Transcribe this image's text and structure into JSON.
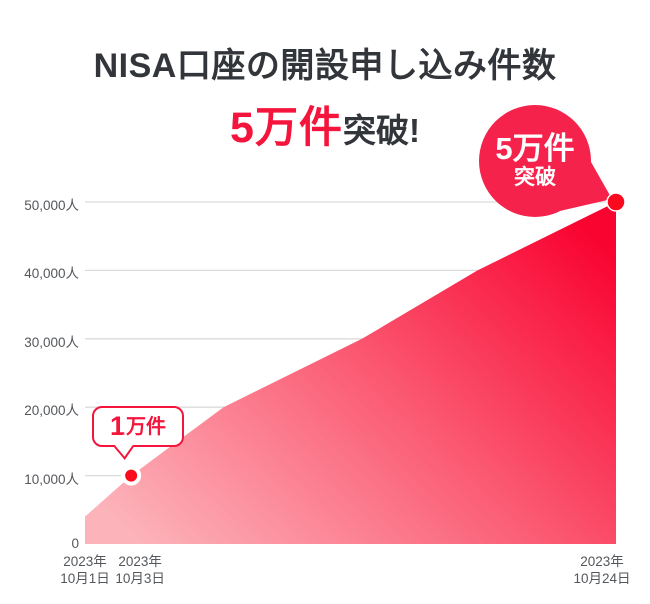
{
  "title": {
    "line1": "NISA口座の開設申し込み件数",
    "highlight": "5万件",
    "suffix": "突破!"
  },
  "badge": {
    "main": "5万件",
    "sub": "突破"
  },
  "callout": {
    "prefix": "1",
    "suffix": "万件"
  },
  "colors": {
    "title_text": "#32363B",
    "accent_red": "#F4143C",
    "badge_red": "#F5234B",
    "dot_red": "#FB0A1E",
    "area_start": "#FCB3BA",
    "area_mid": "#FB5E76",
    "area_end": "#F90330",
    "gridline": "#DBDBDB",
    "axis_text": "#54575B"
  },
  "chart_data": {
    "type": "area",
    "title": "NISA口座の開設申し込み件数 5万件突破!",
    "xlabel": "",
    "ylabel": "",
    "y_unit": "人",
    "ylim": [
      0,
      50000
    ],
    "grid": true,
    "legend": false,
    "points": [
      {
        "date": "2023-10-01",
        "day": 1,
        "value": 4000,
        "estimated": true
      },
      {
        "date": "2023-10-03",
        "day": 3,
        "value": 10000,
        "estimated": false
      },
      {
        "date": "2023-10-07",
        "day": 7,
        "value": 20000,
        "estimated": true
      },
      {
        "date": "2023-10-13",
        "day": 13,
        "value": 30000,
        "estimated": true
      },
      {
        "date": "2023-10-18",
        "day": 18,
        "value": 40000,
        "estimated": true
      },
      {
        "date": "2023-10-24",
        "day": 24,
        "value": 50000,
        "estimated": false
      }
    ],
    "y_ticks": [
      {
        "value": 0,
        "label": "0"
      },
      {
        "value": 10000,
        "label": "10,000人"
      },
      {
        "value": 20000,
        "label": "20,000人"
      },
      {
        "value": 30000,
        "label": "30,000人"
      },
      {
        "value": 40000,
        "label": "40,000人"
      },
      {
        "value": 50000,
        "label": "50,000人"
      }
    ],
    "x_ticks": [
      {
        "line1": "2023年",
        "line2": "10月1日",
        "day": 1
      },
      {
        "line1": "2023年",
        "line2": "10月3日",
        "day": 3
      },
      {
        "line1": "2023年",
        "line2": "10月24日",
        "day": 24
      }
    ],
    "annotations": [
      {
        "label": "1万件",
        "date": "2023-10-03",
        "day": 3,
        "value": 10000
      },
      {
        "label": "5万件 突破",
        "date": "2023-10-24",
        "day": 24,
        "value": 50000
      }
    ]
  }
}
